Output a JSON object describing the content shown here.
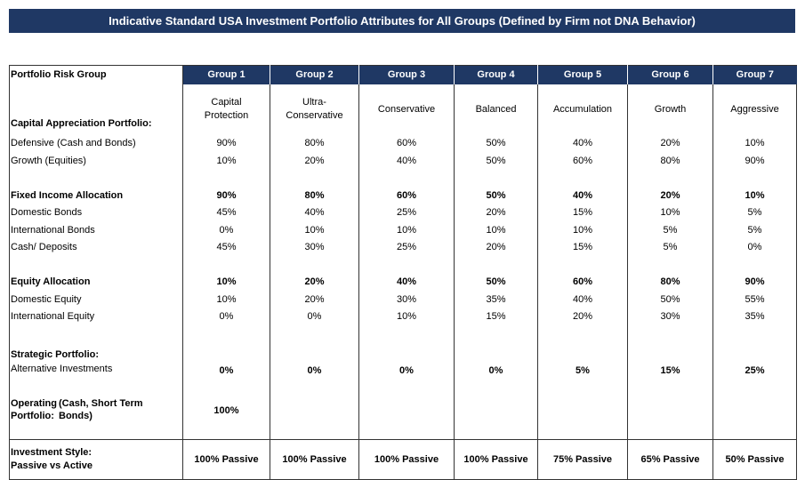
{
  "title": "Indicative Standard USA Investment Portfolio Attributes for All Groups (Defined by Firm not DNA Behavior)",
  "header_label": "Portfolio Risk Group",
  "groups": [
    "Group 1",
    "Group 2",
    "Group 3",
    "Group 4",
    "Group 5",
    "Group 6",
    "Group 7"
  ],
  "group_names": [
    [
      "Capital",
      "Protection"
    ],
    [
      "Ultra-",
      "Conservative"
    ],
    [
      "Conservative"
    ],
    [
      "Balanced"
    ],
    [
      "Accumulation"
    ],
    [
      "Growth"
    ],
    [
      "Aggressive"
    ]
  ],
  "capital_appreciation": {
    "heading": "Capital Appreciation Portfolio:",
    "defensive": {
      "label": "Defensive (Cash and Bonds)",
      "values": [
        "90%",
        "80%",
        "60%",
        "50%",
        "40%",
        "20%",
        "10%"
      ]
    },
    "growth": {
      "label": "Growth (Equities)",
      "values": [
        "10%",
        "20%",
        "40%",
        "50%",
        "60%",
        "80%",
        "90%"
      ]
    }
  },
  "fixed_income": {
    "heading": {
      "label": "Fixed Income Allocation",
      "values": [
        "90%",
        "80%",
        "60%",
        "50%",
        "40%",
        "20%",
        "10%"
      ]
    },
    "domestic": {
      "label": "Domestic Bonds",
      "values": [
        "45%",
        "40%",
        "25%",
        "20%",
        "15%",
        "10%",
        "5%"
      ]
    },
    "international": {
      "label": "International Bonds",
      "values": [
        "0%",
        "10%",
        "10%",
        "10%",
        "10%",
        "5%",
        "5%"
      ]
    },
    "cash": {
      "label": "Cash/ Deposits",
      "values": [
        "45%",
        "30%",
        "25%",
        "20%",
        "15%",
        "5%",
        "0%"
      ]
    }
  },
  "equity": {
    "heading": {
      "label": "Equity Allocation",
      "values": [
        "10%",
        "20%",
        "40%",
        "50%",
        "60%",
        "80%",
        "90%"
      ]
    },
    "domestic": {
      "label": "Domestic Equity",
      "values": [
        "10%",
        "20%",
        "30%",
        "35%",
        "40%",
        "50%",
        "55%"
      ]
    },
    "international": {
      "label": "International Equity",
      "values": [
        "0%",
        "0%",
        "10%",
        "15%",
        "20%",
        "30%",
        "35%"
      ]
    }
  },
  "strategic": {
    "heading": "Strategic Portfolio:",
    "label": "Alternative Investments",
    "values": [
      "0%",
      "0%",
      "0%",
      "0%",
      "5%",
      "15%",
      "25%"
    ]
  },
  "operating": {
    "line1_left": "Operating",
    "line1_right": "(Cash, Short Term",
    "line2_left": "Portfolio:",
    "line2_right": "Bonds)",
    "values": [
      "100%",
      "",
      "",
      "",
      "",
      "",
      ""
    ]
  },
  "investment_style": {
    "line1": "Investment Style:",
    "line2": "Passive vs Active",
    "values": [
      "100% Passive",
      "100% Passive",
      "100% Passive",
      "100% Passive",
      "75% Passive",
      "65% Passive",
      "50% Passive"
    ]
  }
}
